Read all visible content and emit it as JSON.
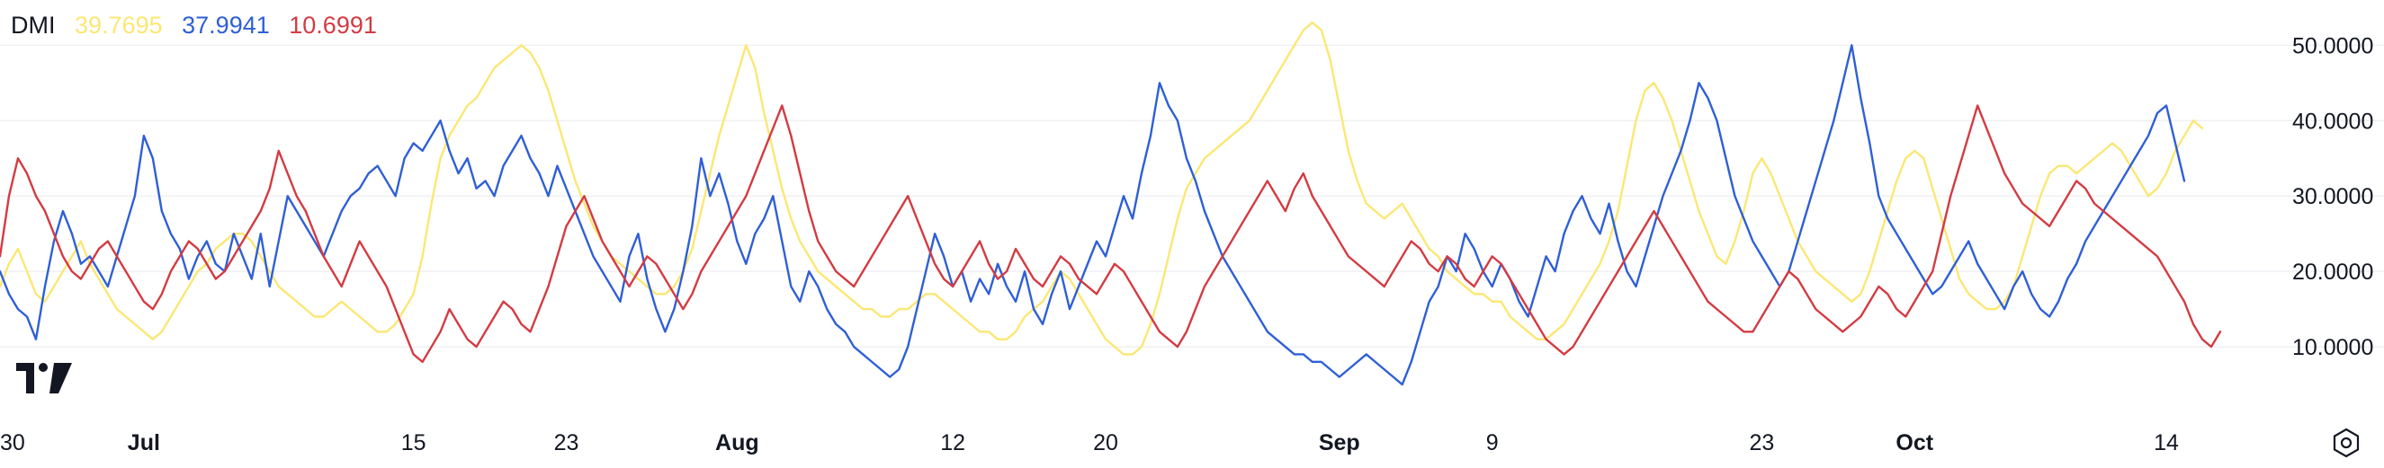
{
  "legend": {
    "indicator": "DMI",
    "adx_value": "39.7695",
    "plus_di_value": "37.9941",
    "minus_di_value": "10.6991"
  },
  "colors": {
    "adx": "#fbe774",
    "plus_di": "#2f5fd6",
    "minus_di": "#d33b42",
    "text": "#131722",
    "grid": "#f0f1f4"
  },
  "icons": [
    "tradingview-logo-icon",
    "settings-gear-icon"
  ],
  "chart_data": {
    "type": "line",
    "ylim": [
      0,
      56
    ],
    "yticks": [
      10,
      20,
      30,
      40,
      50
    ],
    "ytick_labels": [
      "10.0000",
      "20.0000",
      "30.0000",
      "40.0000",
      "50.0000"
    ],
    "xticks": [
      {
        "label": "30",
        "index": 0,
        "major": false
      },
      {
        "label": "Jul",
        "index": 16,
        "major": true
      },
      {
        "label": "15",
        "index": 46,
        "major": false
      },
      {
        "label": "23",
        "index": 63,
        "major": false
      },
      {
        "label": "Aug",
        "index": 82,
        "major": true
      },
      {
        "label": "12",
        "index": 106,
        "major": false
      },
      {
        "label": "20",
        "index": 123,
        "major": false
      },
      {
        "label": "Sep",
        "index": 149,
        "major": true
      },
      {
        "label": "9",
        "index": 166,
        "major": false
      },
      {
        "label": "23",
        "index": 196,
        "major": false
      },
      {
        "label": "Oct",
        "index": 213,
        "major": true
      },
      {
        "label": "14",
        "index": 241,
        "major": false
      }
    ],
    "n_points": 246,
    "series": [
      {
        "key": "adx",
        "values": [
          18,
          21,
          23,
          20,
          17,
          16,
          18,
          20,
          22,
          24,
          21,
          19,
          17,
          15,
          14,
          13,
          12,
          11,
          12,
          14,
          16,
          18,
          20,
          21,
          23,
          24,
          25,
          25,
          24,
          22,
          20,
          18,
          17,
          16,
          15,
          14,
          14,
          15,
          16,
          15,
          14,
          13,
          12,
          12,
          13,
          15,
          17,
          22,
          29,
          35,
          38,
          40,
          42,
          43,
          45,
          47,
          48,
          49,
          50,
          49,
          47,
          44,
          40,
          36,
          32,
          29,
          26,
          24,
          22,
          21,
          20,
          19,
          18,
          17,
          17,
          18,
          20,
          23,
          28,
          33,
          38,
          42,
          46,
          50,
          47,
          41,
          36,
          31,
          27,
          24,
          22,
          20,
          19,
          18,
          17,
          16,
          15,
          15,
          14,
          14,
          15,
          15,
          16,
          17,
          17,
          16,
          15,
          14,
          13,
          12,
          12,
          11,
          11,
          12,
          14,
          15,
          16,
          18,
          20,
          19,
          17,
          15,
          13,
          11,
          10,
          9,
          9,
          10,
          13,
          17,
          22,
          27,
          31,
          33,
          35,
          36,
          37,
          38,
          39,
          40,
          42,
          44,
          46,
          48,
          50,
          52,
          53,
          52,
          48,
          42,
          36,
          32,
          29,
          28,
          27,
          28,
          29,
          27,
          25,
          23,
          22,
          20,
          19,
          18,
          17,
          17,
          16,
          16,
          14,
          13,
          12,
          11,
          11,
          12,
          13,
          15,
          17,
          19,
          21,
          24,
          28,
          34,
          40,
          44,
          45,
          43,
          40,
          36,
          32,
          28,
          25,
          22,
          21,
          24,
          28,
          33,
          35,
          33,
          30,
          27,
          24,
          22,
          20,
          19,
          18,
          17,
          16,
          17,
          20,
          24,
          28,
          32,
          35,
          36,
          35,
          31,
          27,
          23,
          19,
          17,
          16,
          15,
          15,
          16,
          18,
          22,
          26,
          30,
          33,
          34,
          34,
          33,
          34,
          35,
          36,
          37,
          36,
          34,
          32,
          30,
          31,
          33,
          36,
          38,
          40,
          39
        ]
      },
      {
        "key": "plus_di",
        "values": [
          20,
          17,
          15,
          14,
          11,
          18,
          24,
          28,
          25,
          21,
          22,
          20,
          18,
          22,
          26,
          30,
          38,
          35,
          28,
          25,
          23,
          19,
          22,
          24,
          21,
          20,
          25,
          22,
          19,
          25,
          18,
          24,
          30,
          28,
          26,
          24,
          22,
          25,
          28,
          30,
          31,
          33,
          34,
          32,
          30,
          35,
          37,
          36,
          38,
          40,
          36,
          33,
          35,
          31,
          32,
          30,
          34,
          36,
          38,
          35,
          33,
          30,
          34,
          31,
          28,
          25,
          22,
          20,
          18,
          16,
          22,
          25,
          19,
          15,
          12,
          15,
          20,
          26,
          35,
          30,
          33,
          29,
          24,
          21,
          25,
          27,
          30,
          24,
          18,
          16,
          20,
          18,
          15,
          13,
          12,
          10,
          9,
          8,
          7,
          6,
          7,
          10,
          15,
          20,
          25,
          22,
          18,
          20,
          16,
          19,
          17,
          21,
          18,
          16,
          20,
          15,
          13,
          17,
          20,
          15,
          18,
          21,
          24,
          22,
          26,
          30,
          27,
          33,
          38,
          45,
          42,
          40,
          35,
          32,
          28,
          25,
          22,
          20,
          18,
          16,
          14,
          12,
          11,
          10,
          9,
          9,
          8,
          8,
          7,
          6,
          7,
          8,
          9,
          8,
          7,
          6,
          5,
          8,
          12,
          16,
          18,
          22,
          20,
          25,
          23,
          20,
          18,
          21,
          19,
          16,
          14,
          18,
          22,
          20,
          25,
          28,
          30,
          27,
          25,
          29,
          24,
          20,
          18,
          22,
          26,
          30,
          33,
          36,
          40,
          45,
          43,
          40,
          35,
          30,
          27,
          24,
          22,
          20,
          18,
          20,
          24,
          28,
          32,
          36,
          40,
          45,
          50,
          43,
          37,
          30,
          27,
          25,
          23,
          21,
          19,
          17,
          18,
          20,
          22,
          24,
          21,
          19,
          17,
          15,
          18,
          20,
          17,
          15,
          14,
          16,
          19,
          21,
          24,
          26,
          28,
          30,
          32,
          34,
          36,
          38,
          41,
          42,
          37,
          32
        ]
      },
      {
        "key": "minus_di",
        "values": [
          22,
          30,
          35,
          33,
          30,
          28,
          25,
          22,
          20,
          19,
          21,
          23,
          24,
          22,
          20,
          18,
          16,
          15,
          17,
          20,
          22,
          24,
          23,
          21,
          19,
          20,
          22,
          24,
          26,
          28,
          31,
          36,
          33,
          30,
          28,
          25,
          22,
          20,
          18,
          21,
          24,
          22,
          20,
          18,
          15,
          12,
          9,
          8,
          10,
          12,
          15,
          13,
          11,
          10,
          12,
          14,
          16,
          15,
          13,
          12,
          15,
          18,
          22,
          26,
          28,
          30,
          27,
          24,
          22,
          20,
          18,
          20,
          22,
          21,
          19,
          17,
          15,
          17,
          20,
          22,
          24,
          26,
          28,
          30,
          33,
          36,
          39,
          42,
          38,
          33,
          28,
          24,
          22,
          20,
          19,
          18,
          20,
          22,
          24,
          26,
          28,
          30,
          27,
          24,
          21,
          19,
          18,
          20,
          22,
          24,
          21,
          19,
          20,
          23,
          21,
          19,
          18,
          20,
          22,
          21,
          19,
          18,
          17,
          19,
          21,
          20,
          18,
          16,
          14,
          12,
          11,
          10,
          12,
          15,
          18,
          20,
          22,
          24,
          26,
          28,
          30,
          32,
          30,
          28,
          31,
          33,
          30,
          28,
          26,
          24,
          22,
          21,
          20,
          19,
          18,
          20,
          22,
          24,
          23,
          21,
          20,
          22,
          21,
          19,
          18,
          20,
          22,
          21,
          19,
          17,
          15,
          13,
          11,
          10,
          9,
          10,
          12,
          14,
          16,
          18,
          20,
          22,
          24,
          26,
          28,
          26,
          24,
          22,
          20,
          18,
          16,
          15,
          14,
          13,
          12,
          12,
          14,
          16,
          18,
          20,
          19,
          17,
          15,
          14,
          13,
          12,
          13,
          14,
          16,
          18,
          17,
          15,
          14,
          16,
          18,
          20,
          25,
          30,
          34,
          38,
          42,
          39,
          36,
          33,
          31,
          29,
          28,
          27,
          26,
          28,
          30,
          32,
          31,
          29,
          28,
          27,
          26,
          25,
          24,
          23,
          22,
          20,
          18,
          16,
          13,
          11,
          10,
          12
        ]
      }
    ]
  }
}
